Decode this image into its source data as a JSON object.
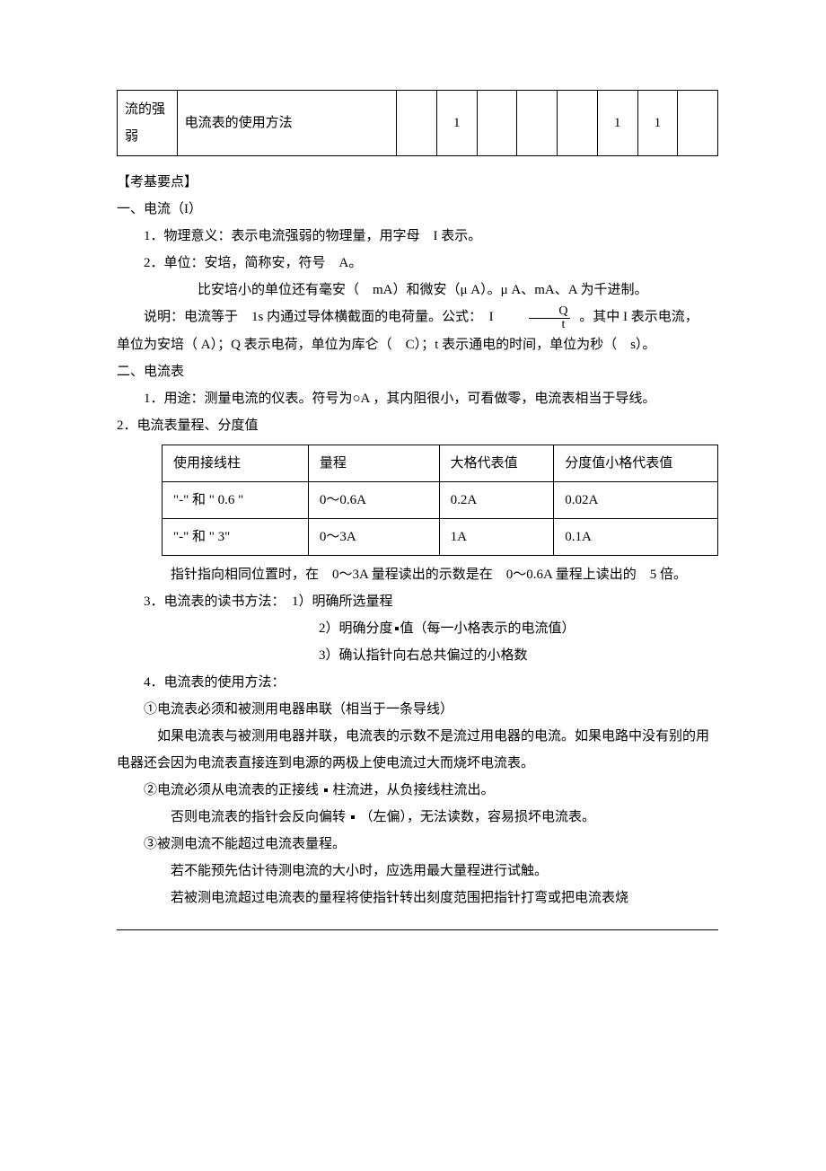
{
  "top_table": {
    "row": {
      "col1": "流的强弱",
      "col2": "电流表的使用方法",
      "cells": [
        "",
        "1",
        "",
        "",
        "",
        "1",
        "1",
        ""
      ]
    }
  },
  "heading_exam": "【考基要点】",
  "sec1_title": "一、电流（I）",
  "sec1_p1": "1．物理意义：表示电流强弱的物理量，用字母　I 表示。",
  "sec1_p2": "2．单位：安培，简称安，符号　A。",
  "sec1_p3": "比安培小的单位还有毫安（　mA）和微安（μ A）。μ A、mA、A 为千进制。",
  "sec1_p4a": "说明：电流等于　1s 内通过导体横截面的电荷量。公式：　I",
  "frac": {
    "num": "Q",
    "den": "t"
  },
  "sec1_p4b": "。其中 I 表示电流，",
  "sec1_p5": "单位为安培（ A）；Q 表示电荷，单位为库仑（　C）；t 表示通电的时间，单位为秒（　s）。",
  "sec2_title": "二、电流表",
  "sec2_p1": "1．用途：测量电流的仪表。符号为○A ，其内阻很小，可看做零，电流表相当于导线。",
  "sec2_p2": "2．电流表量程、分度值",
  "range_table": {
    "columns": [
      "使用接线柱",
      "量程",
      "大格代表值",
      "分度值小格代表值"
    ],
    "rows": [
      [
        "\"-\" 和 \" 0.6 \"",
        "0～0.6A",
        "0.2A",
        "0.02A"
      ],
      [
        "\"-\" 和 \" 3\"",
        "0～3A",
        "1A",
        "0.1A"
      ]
    ],
    "col_widths": [
      "150px",
      "130px",
      "110px",
      "170px"
    ]
  },
  "sec2_p3": "指针指向相同位置时，在　0～3A 量程读出的示数是在　0～0.6A 量程上读出的　5 倍。",
  "sec2_p4": "3．电流表的读书方法：　1）明确所选量程",
  "sec2_p5": "2）明确分度",
  "sec2_p5b": "值（每一小格表示的电流值）",
  "sec2_p6": "3）确认指针向右总共偏过的小格数",
  "sec2_p7": "4．电流表的使用方法：",
  "sec2_p8": "①电流表必须和被测用电器串联（相当于一条导线）",
  "sec2_p9": "如果电流表与被测用电器并联，电流表的示数不是流过用电器的电流。如果电路中没有别的用电器还会因为电流表直接连到电源的两极上使电流过大而烧坏电流表。",
  "sec2_p10a": "②电流必须从电流表的正接线",
  "sec2_p10b": "柱流进，从负接线柱流出。",
  "sec2_p11a": "否则电流表的指针会反向偏转",
  "sec2_p11b": "（左偏），无法读数，容易损坏电流表。",
  "sec2_p12": "③被测电流不能超过电流表量程。",
  "sec2_p13": "若不能预先估计待测电流的大小时，应选用最大量程进行试触。",
  "sec2_p14": "若被测电流超过电流表的量程将使指针转出刻度范围把指针打弯或把电流表烧",
  "colors": {
    "text": "#000000",
    "background": "#ffffff",
    "border": "#000000"
  }
}
